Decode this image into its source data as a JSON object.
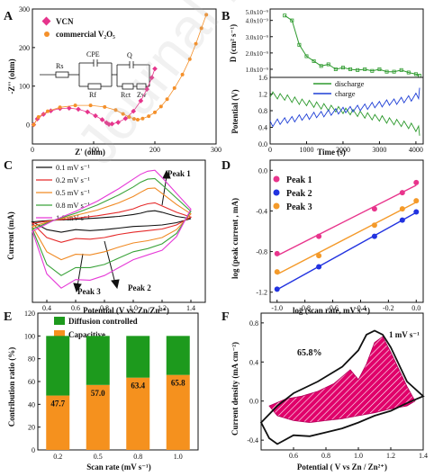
{
  "watermark": "Journal Pre-proof",
  "colors": {
    "vcn": "#e6348c",
    "v2o5": "#f4902a",
    "green": "#2e9a2e",
    "blue": "#1f3fd6",
    "cv_blk": "#111111",
    "cv_blu": "#1f3fd6",
    "cv_red": "#e52a2a",
    "cv_org": "#f08a24",
    "cv_grn": "#3aa33a",
    "cv_mag": "#e63ad7",
    "p1": "#e8348c",
    "p2": "#2233e0",
    "p3": "#f49a2a",
    "bar_green": "#1d9a1d",
    "bar_orange": "#f5911e",
    "hatch": "#e0006a"
  },
  "panels": {
    "A": {
      "letter": "A",
      "xlabel": "Z' (ohm)",
      "ylabel": "-Z'' (ohm)",
      "legend": [
        "VCN",
        "commercial V₂O₅"
      ],
      "circuit": [
        "Rs",
        "CPE",
        "Q",
        "Rf",
        "Rct",
        "Zw"
      ]
    },
    "B": {
      "letter": "B",
      "xlabel": "Time (s)",
      "ylabel_top": "D (cm² s⁻¹)",
      "ylabel_bot": "Potential (V)",
      "legend": [
        "discharge",
        "charge"
      ]
    },
    "C": {
      "letter": "C",
      "xlabel": "Potential (V vs. Zn/Zn²⁺)",
      "ylabel": "Current (mA)",
      "legend": [
        "0.1 mV s⁻¹",
        "0.2 mV s⁻¹",
        "0.5 mV s⁻¹",
        "0.8 mV s⁻¹",
        "1.0 mV s⁻¹"
      ],
      "annotations": [
        "Peak 1",
        "Peak 2",
        "Peak 3"
      ]
    },
    "D": {
      "letter": "D",
      "xlabel": "log (scan rate, mV s⁻¹)",
      "ylabel": "log (peak current , mA)",
      "legend": [
        "Peak 1",
        "Peak 2",
        "Peak 3"
      ]
    },
    "E": {
      "letter": "E",
      "xlabel": "Scan rate (mV s⁻¹)",
      "ylabel": "Contribution ratio (%)",
      "legend": [
        "Diffusion controlled",
        "Capacitive"
      ]
    },
    "F": {
      "letter": "F",
      "xlabel": "Potential ( V vs Zn / Zn²⁺)",
      "ylabel": "Current density (mA cm⁻²)",
      "annotations": [
        "65.8%",
        "1 mV s⁻¹"
      ]
    }
  },
  "chart_data": [
    {
      "type": "scatter",
      "panel": "A",
      "xlim": [
        0,
        300
      ],
      "ylim": [
        -50,
        300
      ],
      "xticks": [
        0,
        100,
        200,
        300
      ],
      "yticks": [
        0,
        100,
        200,
        300
      ],
      "series": [
        {
          "name": "VCN",
          "x": [
            2,
            8,
            18,
            30,
            45,
            60,
            75,
            90,
            103,
            114,
            121,
            125,
            130,
            140,
            152,
            165,
            177,
            187,
            195,
            200
          ],
          "y": [
            0,
            15,
            27,
            36,
            42,
            43,
            40,
            33,
            23,
            13,
            5,
            1,
            2,
            6,
            16,
            35,
            62,
            92,
            122,
            145
          ]
        },
        {
          "name": "commercial V₂O₅",
          "x": [
            2,
            10,
            25,
            45,
            70,
            95,
            118,
            136,
            148,
            158,
            166,
            172,
            180,
            190,
            200,
            210,
            220,
            232,
            245,
            257,
            267,
            276,
            284
          ],
          "y": [
            0,
            20,
            35,
            45,
            50,
            50,
            46,
            38,
            28,
            20,
            15,
            13,
            16,
            22,
            32,
            47,
            66,
            95,
            130,
            170,
            210,
            250,
            285
          ]
        }
      ]
    },
    {
      "type": "line",
      "panel": "B-top",
      "xlim": [
        0,
        4200
      ],
      "ylim": [
        5e-10,
        5e-09
      ],
      "yticks": [
        "5.0x10⁻⁹",
        "4.0x10⁻⁹",
        "3.0x10⁻⁹",
        "2.0x10⁻⁹",
        "1.0x10⁻⁹"
      ],
      "ytick_values": [
        5e-09,
        4e-09,
        3e-09,
        2e-09,
        1e-09
      ],
      "series": [
        {
          "name": "D",
          "x": [
            400,
            600,
            800,
            1000,
            1200,
            1400,
            1600,
            1800,
            2000,
            2200,
            2400,
            2600,
            2800,
            3000,
            3200,
            3400,
            3600,
            3800,
            4000,
            4100
          ],
          "y": [
            4.3e-09,
            4e-09,
            2.5e-09,
            1.8e-09,
            1.5e-09,
            1.2e-09,
            1.3e-09,
            1e-09,
            1.1e-09,
            1e-09,
            9.5e-10,
            1e-09,
            9e-10,
            1e-09,
            8.5e-10,
            8.5e-10,
            9.5e-10,
            8e-10,
            7e-10,
            6e-10
          ]
        }
      ]
    },
    {
      "type": "line",
      "panel": "B-bottom",
      "xlim": [
        0,
        4200
      ],
      "ylim": [
        0.0,
        1.6
      ],
      "xticks": [
        0,
        1000,
        2000,
        3000,
        4000
      ],
      "yticks": [
        0.0,
        0.4,
        0.8,
        1.2,
        1.6
      ],
      "series": [
        {
          "name": "discharge",
          "x": [
            0,
            200,
            400,
            600,
            800,
            1000,
            1200,
            1400,
            1600,
            1800,
            2000,
            2200,
            2400,
            2600,
            2800,
            3000,
            3200,
            3400,
            3600,
            3800,
            4000,
            4100
          ],
          "y": [
            1.12,
            1.08,
            1.05,
            1.0,
            0.95,
            0.92,
            0.88,
            0.84,
            0.8,
            0.77,
            0.73,
            0.7,
            0.66,
            0.62,
            0.58,
            0.55,
            0.5,
            0.46,
            0.42,
            0.37,
            0.3,
            0.2
          ]
        },
        {
          "name": "charge",
          "x": [
            0,
            200,
            400,
            600,
            800,
            1000,
            1200,
            1400,
            1600,
            1800,
            2000,
            2200,
            2400,
            2600,
            2800,
            3000,
            3200,
            3400,
            3600,
            3800,
            4000,
            4100
          ],
          "y": [
            0.55,
            0.6,
            0.63,
            0.66,
            0.7,
            0.72,
            0.76,
            0.78,
            0.82,
            0.85,
            0.88,
            0.9,
            0.93,
            0.96,
            1.0,
            1.02,
            1.06,
            1.08,
            1.12,
            1.16,
            1.22,
            1.35
          ]
        }
      ]
    },
    {
      "type": "line",
      "panel": "C",
      "xlim": [
        0.3,
        1.5
      ],
      "ylim": [
        -2.6,
        1.9
      ],
      "xticks": [
        0.4,
        0.6,
        0.8,
        1.0,
        1.2,
        1.4
      ],
      "x_anodic": [
        0.3,
        0.45,
        0.6,
        0.75,
        0.9,
        1.0,
        1.05,
        1.1,
        1.15,
        1.2,
        1.3,
        1.4
      ],
      "x_cathodic": [
        1.4,
        1.3,
        1.2,
        1.1,
        1.0,
        0.9,
        0.8,
        0.7,
        0.6,
        0.5,
        0.4,
        0.3
      ],
      "series": [
        {
          "name": "0.1 mV s⁻¹",
          "anodic": [
            -0.05,
            0.0,
            0.03,
            0.07,
            0.12,
            0.18,
            0.22,
            0.28,
            0.3,
            0.25,
            0.12,
            0.05
          ],
          "cathodic": [
            0.05,
            -0.08,
            -0.15,
            -0.18,
            -0.2,
            -0.25,
            -0.3,
            -0.33,
            -0.3,
            -0.38,
            -0.3,
            -0.05
          ]
        },
        {
          "name": "0.2 mV s⁻¹",
          "anodic": [
            -0.1,
            0.0,
            0.06,
            0.14,
            0.25,
            0.36,
            0.45,
            0.52,
            0.55,
            0.45,
            0.25,
            0.1
          ],
          "cathodic": [
            0.1,
            -0.15,
            -0.28,
            -0.33,
            -0.38,
            -0.45,
            -0.55,
            -0.6,
            -0.58,
            -0.7,
            -0.55,
            -0.1
          ]
        },
        {
          "name": "0.5 mV s⁻¹",
          "anodic": [
            -0.2,
            0.0,
            0.15,
            0.32,
            0.55,
            0.75,
            0.88,
            1.0,
            1.02,
            0.85,
            0.5,
            0.2
          ],
          "cathodic": [
            0.2,
            -0.3,
            -0.55,
            -0.65,
            -0.72,
            -0.85,
            -1.0,
            -1.1,
            -1.08,
            -1.25,
            -1.0,
            -0.2
          ]
        },
        {
          "name": "0.8 mV s⁻¹",
          "anodic": [
            -0.28,
            0.0,
            0.22,
            0.48,
            0.8,
            1.05,
            1.2,
            1.3,
            1.32,
            1.12,
            0.7,
            0.28
          ],
          "cathodic": [
            0.28,
            -0.42,
            -0.75,
            -0.9,
            -1.0,
            -1.2,
            -1.4,
            -1.5,
            -1.5,
            -1.75,
            -1.4,
            -0.28
          ]
        },
        {
          "name": "1.0 mV s⁻¹",
          "anodic": [
            -0.35,
            0.0,
            0.28,
            0.6,
            1.0,
            1.3,
            1.45,
            1.55,
            1.58,
            1.35,
            0.85,
            0.35
          ],
          "cathodic": [
            0.35,
            -0.52,
            -0.95,
            -1.1,
            -1.25,
            -1.5,
            -1.75,
            -1.9,
            -1.88,
            -2.15,
            -1.7,
            -0.35
          ]
        }
      ]
    },
    {
      "type": "scatter",
      "panel": "D",
      "xlim": [
        -1.05,
        0.05
      ],
      "ylim": [
        -1.3,
        0.1
      ],
      "xticks": [
        -1.0,
        -0.8,
        -0.6,
        -0.4,
        -0.2,
        0.0
      ],
      "yticks": [
        -1.2,
        -0.8,
        -0.4,
        0.0
      ],
      "x": [
        -1.0,
        -0.7,
        -0.3,
        -0.1,
        0.0
      ],
      "series": [
        {
          "name": "Peak 1",
          "values": [
            -0.82,
            -0.65,
            -0.38,
            -0.22,
            -0.12
          ]
        },
        {
          "name": "Peak 2",
          "values": [
            -1.17,
            -0.95,
            -0.65,
            -0.49,
            -0.41
          ]
        },
        {
          "name": "Peak 3",
          "values": [
            -1.0,
            -0.84,
            -0.54,
            -0.38,
            -0.3
          ]
        }
      ]
    },
    {
      "type": "bar",
      "panel": "E",
      "categories": [
        "0.2",
        "0.5",
        "0.8",
        "1.0"
      ],
      "ylim": [
        0,
        120
      ],
      "yticks": [
        0,
        20,
        40,
        60,
        80,
        100,
        120
      ],
      "series": [
        {
          "name": "Capacitive",
          "values": [
            47.7,
            57.0,
            63.4,
            65.8
          ]
        },
        {
          "name": "Diffusion controlled",
          "values": [
            52.3,
            43.0,
            36.6,
            34.2
          ]
        }
      ],
      "labels": [
        "47.7",
        "57.0",
        "63.4",
        "65.8"
      ]
    },
    {
      "type": "area",
      "panel": "F",
      "xlim": [
        0.4,
        1.4
      ],
      "ylim": [
        -0.5,
        0.9
      ],
      "xticks": [
        0.6,
        0.8,
        1.0,
        1.2,
        1.4
      ],
      "yticks": [
        -0.4,
        0.0,
        0.4,
        0.8
      ],
      "outer_x": [
        0.4,
        0.5,
        0.6,
        0.75,
        0.9,
        1.0,
        1.05,
        1.1,
        1.15,
        1.2,
        1.3,
        1.4,
        1.3,
        1.2,
        1.1,
        1.0,
        0.9,
        0.8,
        0.7,
        0.6,
        0.5,
        0.45,
        0.4
      ],
      "outer_y": [
        -0.22,
        -0.05,
        0.08,
        0.2,
        0.35,
        0.52,
        0.68,
        0.72,
        0.68,
        0.55,
        0.2,
        0.05,
        -0.02,
        -0.1,
        -0.15,
        -0.22,
        -0.28,
        -0.32,
        -0.36,
        -0.35,
        -0.44,
        -0.38,
        -0.22
      ],
      "inner_x": [
        0.45,
        0.55,
        0.65,
        0.75,
        0.85,
        0.95,
        1.0,
        1.05,
        1.1,
        1.15,
        1.2,
        1.3,
        1.35,
        1.3,
        1.2,
        1.1,
        1.0,
        0.9,
        0.8,
        0.7,
        0.6,
        0.5,
        0.45
      ],
      "inner_y": [
        -0.05,
        0.02,
        0.05,
        0.1,
        0.18,
        0.32,
        0.22,
        0.38,
        0.6,
        0.66,
        0.5,
        0.15,
        0.0,
        -0.05,
        -0.08,
        -0.12,
        -0.15,
        -0.18,
        -0.2,
        -0.22,
        -0.2,
        -0.15,
        -0.05
      ]
    }
  ]
}
